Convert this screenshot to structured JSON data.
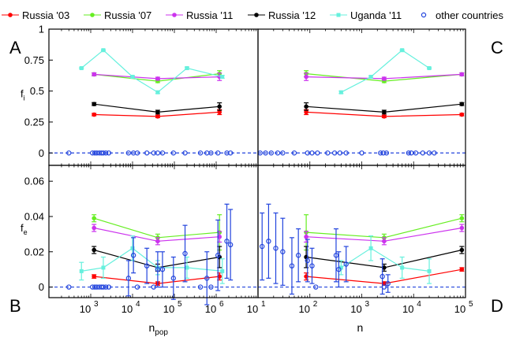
{
  "legend": {
    "items": [
      {
        "label": "Russia '03",
        "color": "#ff0000",
        "marker": "dot"
      },
      {
        "label": "Russia '07",
        "color": "#66ee22",
        "marker": "dot"
      },
      {
        "label": "Russia '11",
        "color": "#cc33ee",
        "marker": "dot"
      },
      {
        "label": "Russia '12",
        "color": "#000000",
        "marker": "dot"
      },
      {
        "label": "Uganda '11",
        "color": "#66f0dd",
        "marker": "square"
      },
      {
        "label": "other countries",
        "color": "#2244dd",
        "marker": "circle"
      }
    ]
  },
  "panel_letters": {
    "A": "A",
    "B": "B",
    "C": "C",
    "D": "D"
  },
  "chart_data": [
    {
      "id": "A",
      "type": "line",
      "xscale": "log",
      "xlim": [
        100,
        10000000
      ],
      "ylim": [
        -0.1,
        1
      ],
      "xlabel": "",
      "ylabel": "f",
      "ylabel_sub": "i",
      "yticks": [
        {
          "v": 0,
          "label": "0"
        },
        {
          "v": 0.25,
          "label": "0.25"
        },
        {
          "v": 0.5,
          "label": "0.5"
        },
        {
          "v": 0.75,
          "label": "0.75"
        },
        {
          "v": 1,
          "label": "1"
        }
      ],
      "series": [
        {
          "name": "Russia '03",
          "color": "#ff0000",
          "marker": "dot",
          "x": [
            1200,
            40000,
            1200000
          ],
          "y": [
            0.31,
            0.295,
            0.33
          ],
          "err": [
            0.01,
            0.01,
            0.02
          ]
        },
        {
          "name": "Russia '07",
          "color": "#66ee22",
          "marker": "dot",
          "x": [
            1200,
            40000,
            1200000
          ],
          "y": [
            0.635,
            0.58,
            0.64
          ],
          "err": [
            0.012,
            0.012,
            0.025
          ]
        },
        {
          "name": "Russia '11",
          "color": "#cc33ee",
          "marker": "dot",
          "x": [
            1200,
            40000,
            1200000
          ],
          "y": [
            0.635,
            0.6,
            0.615
          ],
          "err": [
            0.012,
            0.012,
            0.03
          ]
        },
        {
          "name": "Russia '12",
          "color": "#000000",
          "marker": "dot",
          "x": [
            1200,
            40000,
            1200000
          ],
          "y": [
            0.395,
            0.33,
            0.375
          ],
          "err": [
            0.012,
            0.015,
            0.03
          ]
        },
        {
          "name": "Uganda '11",
          "color": "#66f0dd",
          "marker": "square",
          "x": [
            600,
            2000,
            10000,
            40000,
            200000,
            1400000
          ],
          "y": [
            0.685,
            0.83,
            0.615,
            0.49,
            0.685,
            0.615
          ],
          "err": [
            0.005,
            0.005,
            0.008,
            0.01,
            0.008,
            0.012
          ]
        },
        {
          "name": "other countries",
          "color": "#2244dd",
          "marker": "circle",
          "nolink": true,
          "x": [
            300,
            1100,
            1250,
            1400,
            1600,
            1800,
            2000,
            2300,
            2700,
            8000,
            10500,
            13000,
            22000,
            32000,
            40000,
            52000,
            95000,
            180000,
            420000,
            600000,
            750000,
            1100000,
            1800000,
            2200000
          ],
          "y": [
            0,
            0,
            0,
            0,
            0,
            0,
            0,
            0,
            0,
            0,
            0,
            0,
            0,
            0,
            0,
            0,
            0,
            0,
            0,
            0,
            0,
            0,
            0,
            0
          ]
        }
      ]
    },
    {
      "id": "B",
      "type": "line",
      "xscale": "log",
      "xlim": [
        100,
        10000000
      ],
      "ylim": [
        -0.006,
        0.069
      ],
      "xlabel": "n",
      "xlabel_sub": "pop",
      "ylabel": "f",
      "ylabel_sub": "e",
      "yticks": [
        {
          "v": 0,
          "label": "0"
        },
        {
          "v": 0.02,
          "label": "0.02"
        },
        {
          "v": 0.04,
          "label": "0.04"
        },
        {
          "v": 0.06,
          "label": "0.06"
        }
      ],
      "xticks": [
        {
          "v": 1000,
          "label": "10",
          "exp": "3"
        },
        {
          "v": 10000,
          "label": "10",
          "exp": "4"
        },
        {
          "v": 100000,
          "label": "10",
          "exp": "5"
        },
        {
          "v": 1000000,
          "label": "10",
          "exp": "6"
        }
      ],
      "series": [
        {
          "name": "Russia '03",
          "color": "#ff0000",
          "marker": "dot",
          "x": [
            1200,
            40000,
            1200000
          ],
          "y": [
            0.006,
            0.002,
            0.006
          ],
          "err": [
            0.001,
            0.001,
            0.002
          ]
        },
        {
          "name": "Russia '07",
          "color": "#66ee22",
          "marker": "dot",
          "x": [
            1200,
            40000,
            1200000
          ],
          "y": [
            0.039,
            0.028,
            0.031
          ],
          "err": [
            0.002,
            0.002,
            0.01
          ]
        },
        {
          "name": "Russia '11",
          "color": "#cc33ee",
          "marker": "dot",
          "x": [
            1200,
            40000,
            1200000
          ],
          "y": [
            0.0335,
            0.026,
            0.0285
          ],
          "err": [
            0.002,
            0.002,
            0.003
          ]
        },
        {
          "name": "Russia '12",
          "color": "#000000",
          "marker": "dot",
          "x": [
            1200,
            40000,
            1200000
          ],
          "y": [
            0.021,
            0.011,
            0.017
          ],
          "err": [
            0.002,
            0.002,
            0.006
          ]
        },
        {
          "name": "Uganda '11",
          "color": "#66f0dd",
          "marker": "square",
          "x": [
            600,
            2000,
            10000,
            40000,
            200000,
            1400000
          ],
          "y": [
            0.009,
            0.011,
            0.022,
            0.011,
            0.011,
            0.009
          ],
          "err": [
            0.005,
            0.006,
            0.007,
            0.004,
            0.006,
            0.007
          ]
        },
        {
          "name": "other countries",
          "color": "#2244dd",
          "marker": "circle",
          "nolink": true,
          "x": [
            300,
            1100,
            1250,
            1400,
            1600,
            1800,
            2000,
            2300,
            2700,
            8000,
            10500,
            13000,
            22000,
            32000,
            40000,
            52000,
            95000,
            180000,
            420000,
            600000,
            750000,
            1100000,
            1800000,
            2200000
          ],
          "y": [
            0,
            0,
            0,
            0,
            0,
            0,
            0,
            0,
            0,
            0.005,
            0.018,
            0,
            0.012,
            0,
            0.01,
            0.01,
            0.005,
            0.019,
            0,
            0.005,
            0,
            0.018,
            0.026,
            0.024
          ],
          "err": [
            0,
            0,
            0,
            0,
            0,
            0,
            0,
            0,
            0,
            0.01,
            0.01,
            0,
            0.01,
            0,
            0.01,
            0.01,
            0.012,
            0.016,
            0,
            0.015,
            0,
            0.02,
            0.021,
            0.02
          ]
        }
      ]
    },
    {
      "id": "C",
      "type": "line",
      "xscale": "log",
      "xlim": [
        10,
        100000
      ],
      "ylim": [
        -0.1,
        1
      ],
      "series": [
        {
          "name": "Russia '03",
          "color": "#ff0000",
          "marker": "dot",
          "x": [
            85,
            2700,
            85000
          ],
          "y": [
            0.33,
            0.295,
            0.31
          ],
          "err": [
            0.02,
            0.01,
            0.01
          ]
        },
        {
          "name": "Russia '07",
          "color": "#66ee22",
          "marker": "dot",
          "x": [
            85,
            2700,
            85000
          ],
          "y": [
            0.64,
            0.58,
            0.635
          ],
          "err": [
            0.025,
            0.012,
            0.012
          ]
        },
        {
          "name": "Russia '11",
          "color": "#cc33ee",
          "marker": "dot",
          "x": [
            85,
            2700,
            85000
          ],
          "y": [
            0.615,
            0.6,
            0.635
          ],
          "err": [
            0.03,
            0.012,
            0.012
          ]
        },
        {
          "name": "Russia '12",
          "color": "#000000",
          "marker": "dot",
          "x": [
            85,
            2700,
            85000
          ],
          "y": [
            0.375,
            0.33,
            0.395
          ],
          "err": [
            0.03,
            0.015,
            0.012
          ]
        },
        {
          "name": "Uganda '11",
          "color": "#66f0dd",
          "marker": "square",
          "x": [
            400,
            1500,
            6000,
            20000
          ],
          "y": [
            0.49,
            0.615,
            0.83,
            0.685
          ],
          "err": [
            0.01,
            0.008,
            0.005,
            0.005
          ]
        },
        {
          "name": "other countries",
          "color": "#2244dd",
          "marker": "circle",
          "nolink": true,
          "x": [
            11,
            14,
            18,
            24,
            30,
            50,
            90,
            110,
            140,
            220,
            300,
            380,
            500,
            1000,
            2300,
            2600,
            3000,
            8000,
            9000,
            11000,
            15000,
            20000,
            25000
          ],
          "y": [
            0,
            0,
            0,
            0,
            0,
            0,
            0,
            0,
            0,
            0,
            0,
            0,
            0,
            0,
            0,
            0,
            0,
            0,
            0,
            0,
            0,
            0,
            0
          ]
        }
      ]
    },
    {
      "id": "D",
      "type": "line",
      "xscale": "log",
      "xlim": [
        10,
        100000
      ],
      "ylim": [
        -0.006,
        0.069
      ],
      "xlabel": "n",
      "xticks": [
        {
          "v": 10,
          "label": "10",
          "exp": "1"
        },
        {
          "v": 100,
          "label": "10",
          "exp": "2"
        },
        {
          "v": 1000,
          "label": "10",
          "exp": "3"
        },
        {
          "v": 10000,
          "label": "10",
          "exp": "4"
        },
        {
          "v": 100000,
          "label": "10",
          "exp": "5"
        }
      ],
      "series": [
        {
          "name": "Russia '03",
          "color": "#ff0000",
          "marker": "dot",
          "x": [
            85,
            2700,
            85000
          ],
          "y": [
            0.006,
            0.002,
            0.01
          ],
          "err": [
            0.002,
            0.001,
            0.001
          ]
        },
        {
          "name": "Russia '07",
          "color": "#66ee22",
          "marker": "dot",
          "x": [
            85,
            2700,
            85000
          ],
          "y": [
            0.031,
            0.028,
            0.039
          ],
          "err": [
            0.01,
            0.002,
            0.002
          ]
        },
        {
          "name": "Russia '11",
          "color": "#cc33ee",
          "marker": "dot",
          "x": [
            85,
            2700,
            85000
          ],
          "y": [
            0.0285,
            0.026,
            0.0335
          ],
          "err": [
            0.003,
            0.002,
            0.002
          ]
        },
        {
          "name": "Russia '12",
          "color": "#000000",
          "marker": "dot",
          "x": [
            85,
            2700,
            85000
          ],
          "y": [
            0.017,
            0.011,
            0.021
          ],
          "err": [
            0.006,
            0.002,
            0.002
          ]
        },
        {
          "name": "Uganda '11",
          "color": "#66f0dd",
          "marker": "square",
          "x": [
            400,
            1500,
            6000,
            20000
          ],
          "y": [
            0.011,
            0.022,
            0.011,
            0.009
          ],
          "err": [
            0.004,
            0.007,
            0.006,
            0.007
          ]
        },
        {
          "name": "other countries",
          "color": "#2244dd",
          "marker": "circle",
          "nolink": true,
          "x": [
            12,
            16,
            22,
            30,
            45,
            60,
            90,
            110,
            130,
            320,
            360,
            500,
            2500,
            2700,
            3200
          ],
          "y": [
            0.023,
            0.026,
            0.022,
            0.02,
            0.012,
            0.018,
            0.015,
            0.012,
            0.0,
            0.018,
            0.01,
            0.013,
            0.006,
            0.0,
            0.002
          ],
          "err": [
            0.019,
            0.021,
            0.02,
            0.019,
            0.016,
            0.015,
            0.012,
            0.01,
            0.0,
            0.015,
            0.01,
            0.01,
            0.01,
            0.0,
            0.005
          ]
        }
      ]
    }
  ]
}
